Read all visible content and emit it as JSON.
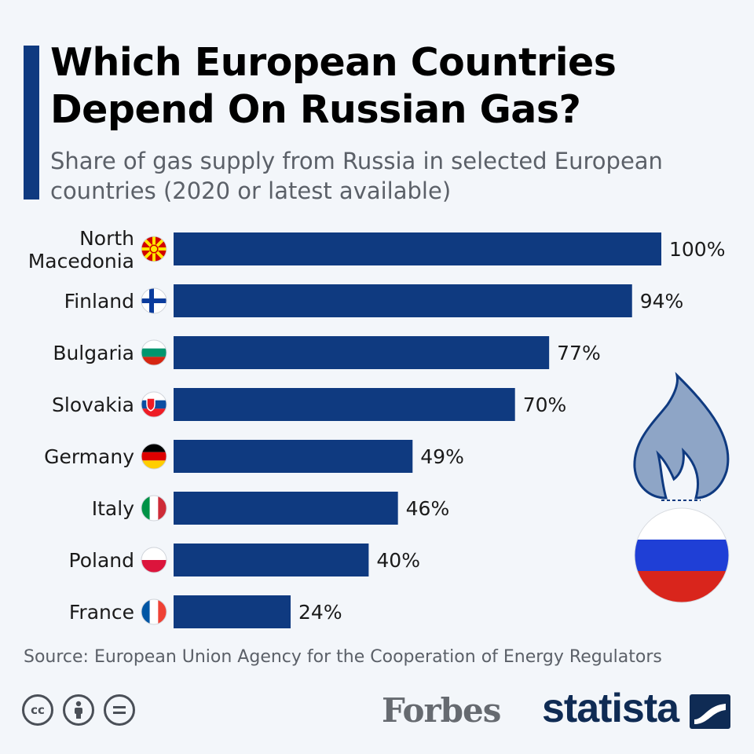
{
  "title_lines": [
    "Which European Countries",
    "Depend On Russian Gas?"
  ],
  "subtitle_lines": [
    "Share of gas supply from Russia in selected European",
    "countries (2020 or latest available)"
  ],
  "source": "Source: European Union Agency for the Cooperation of Energy Regulators",
  "logos": {
    "forbes": "Forbes",
    "statista": "statista"
  },
  "license_icons": [
    "cc-icon",
    "attribution-icon",
    "no-derivatives-icon"
  ],
  "colors": {
    "bar": "#0f3a80",
    "accent": "#0f3a80",
    "flame": "#8ea5c6",
    "flame_stroke": "#0f3a80"
  },
  "chart_data": {
    "type": "bar",
    "orientation": "horizontal",
    "unit": "%",
    "xlim": [
      0,
      100
    ],
    "grid": false,
    "categories": [
      "North Macedonia",
      "Finland",
      "Bulgaria",
      "Slovakia",
      "Germany",
      "Italy",
      "Poland",
      "France"
    ],
    "category_label_lines": [
      [
        "North",
        "Macedonia"
      ],
      [
        "Finland"
      ],
      [
        "Bulgaria"
      ],
      [
        "Slovakia"
      ],
      [
        "Germany"
      ],
      [
        "Italy"
      ],
      [
        "Poland"
      ],
      [
        "France"
      ]
    ],
    "values": [
      100,
      94,
      77,
      70,
      49,
      46,
      40,
      24
    ],
    "value_labels": [
      "100%",
      "94%",
      "77%",
      "70%",
      "49%",
      "46%",
      "40%",
      "24%"
    ],
    "flags": [
      "north-macedonia",
      "finland",
      "bulgaria",
      "slovakia",
      "germany",
      "italy",
      "poland",
      "france"
    ]
  }
}
